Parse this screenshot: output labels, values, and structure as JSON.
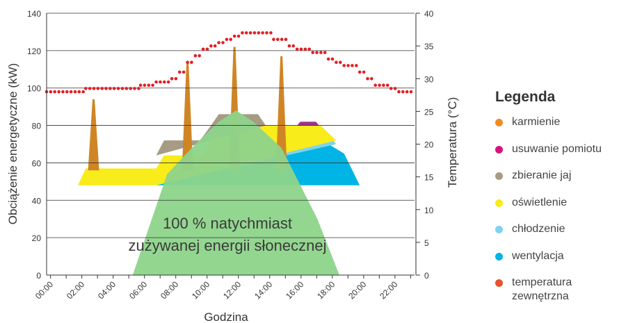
{
  "chart_data": {
    "type": "area",
    "title": "",
    "xlabel": "Godzina",
    "ylabel": "Obciążenie energetyczne (kW)",
    "y2label": "Temperatura (°C)",
    "ylim": [
      0,
      140
    ],
    "y2lim": [
      0,
      40
    ],
    "xlim": [
      0,
      23.5
    ],
    "yticks": [
      "0",
      "20",
      "40",
      "60",
      "80",
      "100",
      "120",
      "140"
    ],
    "y2ticks": [
      "0",
      "5",
      "10",
      "15",
      "20",
      "25",
      "30",
      "35",
      "40"
    ],
    "xticks": [
      "00:00",
      "02:00",
      "04:00",
      "06:00",
      "08:00",
      "10:00",
      "12:00",
      "14:00",
      "16:00",
      "18:00",
      "20:00",
      "22:00"
    ],
    "grid": "horizontal",
    "annotation": [
      "100 % natychmiast",
      "zużywanej energii słonecznej"
    ],
    "series": [
      {
        "name": "wentylacja",
        "color": "#00b5e5",
        "points": [
          [
            0,
            48
          ],
          [
            7,
            48
          ],
          [
            7.5,
            58
          ],
          [
            10.5,
            58
          ],
          [
            11,
            70
          ],
          [
            18,
            70
          ],
          [
            19,
            65
          ],
          [
            20,
            48
          ],
          [
            23.5,
            48
          ]
        ]
      },
      {
        "name": "chłodzenie",
        "color": "#7fd3ee",
        "points": [
          [
            7,
            48
          ],
          [
            7.5,
            58
          ],
          [
            10.5,
            58
          ],
          [
            11,
            70
          ],
          [
            14,
            70
          ],
          [
            14.3,
            72
          ],
          [
            18.3,
            72
          ],
          [
            18.5,
            70
          ],
          [
            7,
            48
          ]
        ]
      },
      {
        "name": "oświetlenie",
        "color": "#f8ec1a",
        "points": [
          [
            2,
            48
          ],
          [
            2.5,
            57
          ],
          [
            7,
            57
          ],
          [
            7.5,
            64
          ],
          [
            10,
            64
          ],
          [
            10.5,
            72
          ],
          [
            11,
            80
          ],
          [
            17.5,
            80
          ],
          [
            18.5,
            72
          ],
          [
            7,
            48
          ]
        ]
      },
      {
        "name": "zbieranie jaj",
        "color": "#a69c84",
        "points": [
          [
            7,
            64
          ],
          [
            7.5,
            72
          ],
          [
            9.8,
            72
          ],
          [
            10.5,
            80
          ],
          [
            11,
            86
          ],
          [
            13.5,
            86
          ],
          [
            14,
            80
          ],
          [
            7,
            64
          ]
        ]
      },
      {
        "name": "usuwanie pomiotu",
        "color": "#a1328b",
        "points": [
          [
            16,
            80
          ],
          [
            16.2,
            82
          ],
          [
            17.2,
            82
          ],
          [
            17.4,
            80
          ]
        ]
      },
      {
        "name": "karmienie",
        "color": "#d08525",
        "spikes": [
          [
            3,
            94
          ],
          [
            9,
            114
          ],
          [
            12,
            122
          ],
          [
            15,
            117
          ]
        ]
      },
      {
        "name": "energia słoneczna",
        "color": "#8dd48a",
        "points": [
          [
            5.5,
            0
          ],
          [
            7.7,
            54
          ],
          [
            9.5,
            70
          ],
          [
            11,
            82
          ],
          [
            12.1,
            88
          ],
          [
            13.2,
            82
          ],
          [
            15,
            68
          ],
          [
            17.3,
            30
          ],
          [
            18.7,
            0
          ]
        ]
      }
    ],
    "temperature": {
      "name": "temperatura zewnętrzna",
      "color": "#e31e24",
      "points": [
        [
          0,
          28
        ],
        [
          2.5,
          28
        ],
        [
          2.5,
          28.5
        ],
        [
          6,
          28.5
        ],
        [
          6,
          29
        ],
        [
          7,
          29
        ],
        [
          7,
          29.5
        ],
        [
          8,
          29.5
        ],
        [
          8,
          30
        ],
        [
          8.5,
          30
        ],
        [
          8.5,
          31
        ],
        [
          9,
          31
        ],
        [
          9,
          32.5
        ],
        [
          9.5,
          32.5
        ],
        [
          9.5,
          33.5
        ],
        [
          10,
          33.5
        ],
        [
          10,
          34.5
        ],
        [
          10.5,
          34.5
        ],
        [
          10.5,
          35
        ],
        [
          11,
          35
        ],
        [
          11,
          35.5
        ],
        [
          11.5,
          35.5
        ],
        [
          11.5,
          36
        ],
        [
          12,
          36
        ],
        [
          12,
          36.5
        ],
        [
          12.5,
          36.5
        ],
        [
          12.5,
          37
        ],
        [
          14.5,
          37
        ],
        [
          14.5,
          36
        ],
        [
          15.5,
          36
        ],
        [
          15.5,
          35
        ],
        [
          16,
          35
        ],
        [
          16,
          34.5
        ],
        [
          17,
          34.5
        ],
        [
          17,
          34
        ],
        [
          18,
          34
        ],
        [
          18,
          33
        ],
        [
          18.5,
          33
        ],
        [
          18.5,
          32.5
        ],
        [
          19,
          32.5
        ],
        [
          19,
          32
        ],
        [
          20,
          32
        ],
        [
          20,
          31
        ],
        [
          20.5,
          31
        ],
        [
          20.5,
          30
        ],
        [
          21,
          30
        ],
        [
          21,
          29
        ],
        [
          22,
          29
        ],
        [
          22,
          28.5
        ],
        [
          22.5,
          28.5
        ],
        [
          22.5,
          28
        ],
        [
          23.5,
          28
        ]
      ]
    }
  },
  "legend": {
    "title": "Legenda",
    "items": [
      {
        "label": "karmienie",
        "color": "#f08a24",
        "name": "legend-karmienie"
      },
      {
        "label": "usuwanie pomiotu",
        "color": "#d6137d",
        "name": "legend-usuwanie-pomiotu"
      },
      {
        "label": "zbieranie jaj",
        "color": "#a69c84",
        "name": "legend-zbieranie-jaj"
      },
      {
        "label": "oświetlenie",
        "color": "#f8ec1a",
        "name": "legend-oswietlenie"
      },
      {
        "label": "chłodzenie",
        "color": "#7fd3ee",
        "name": "legend-chlodzenie"
      },
      {
        "label": "wentylacja",
        "color": "#00b5e5",
        "name": "legend-wentylacja"
      },
      {
        "label": "temperatura\nzewnętrzna",
        "color": "#e8532b",
        "name": "legend-temperatura-zewnetrzna"
      }
    ]
  }
}
